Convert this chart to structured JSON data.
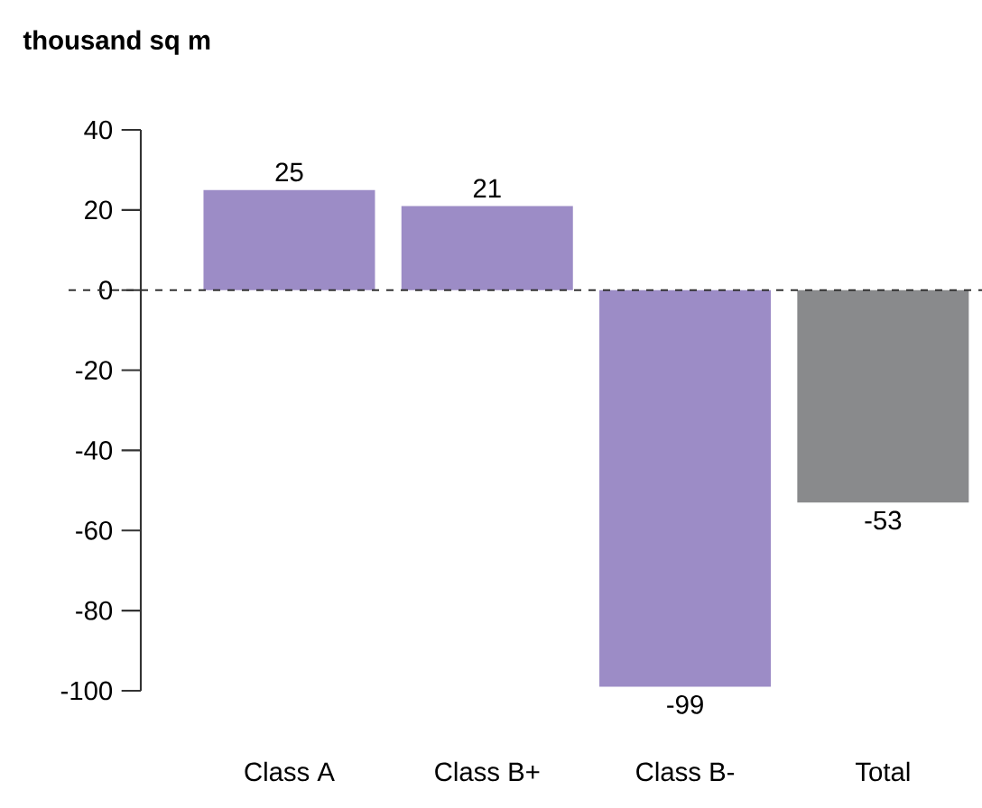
{
  "chart_data": {
    "type": "bar",
    "title": "thousand sq m",
    "categories": [
      "Class A",
      "Class B+",
      "Class B-",
      "Total"
    ],
    "values": [
      25,
      21,
      -99,
      -53
    ],
    "colors": [
      "#9c8cc6",
      "#9c8cc6",
      "#9c8cc6",
      "#898a8c"
    ],
    "value_labels": [
      "25",
      "21",
      "-99",
      "-53"
    ],
    "ylim": [
      -100,
      40
    ],
    "yticks": [
      -100,
      -80,
      -60,
      -40,
      -20,
      0,
      20,
      40
    ],
    "ref_lines": [
      {
        "axis": "y",
        "value": 0,
        "line_style": "dashed",
        "color": "#333333"
      }
    ],
    "grid": false
  }
}
